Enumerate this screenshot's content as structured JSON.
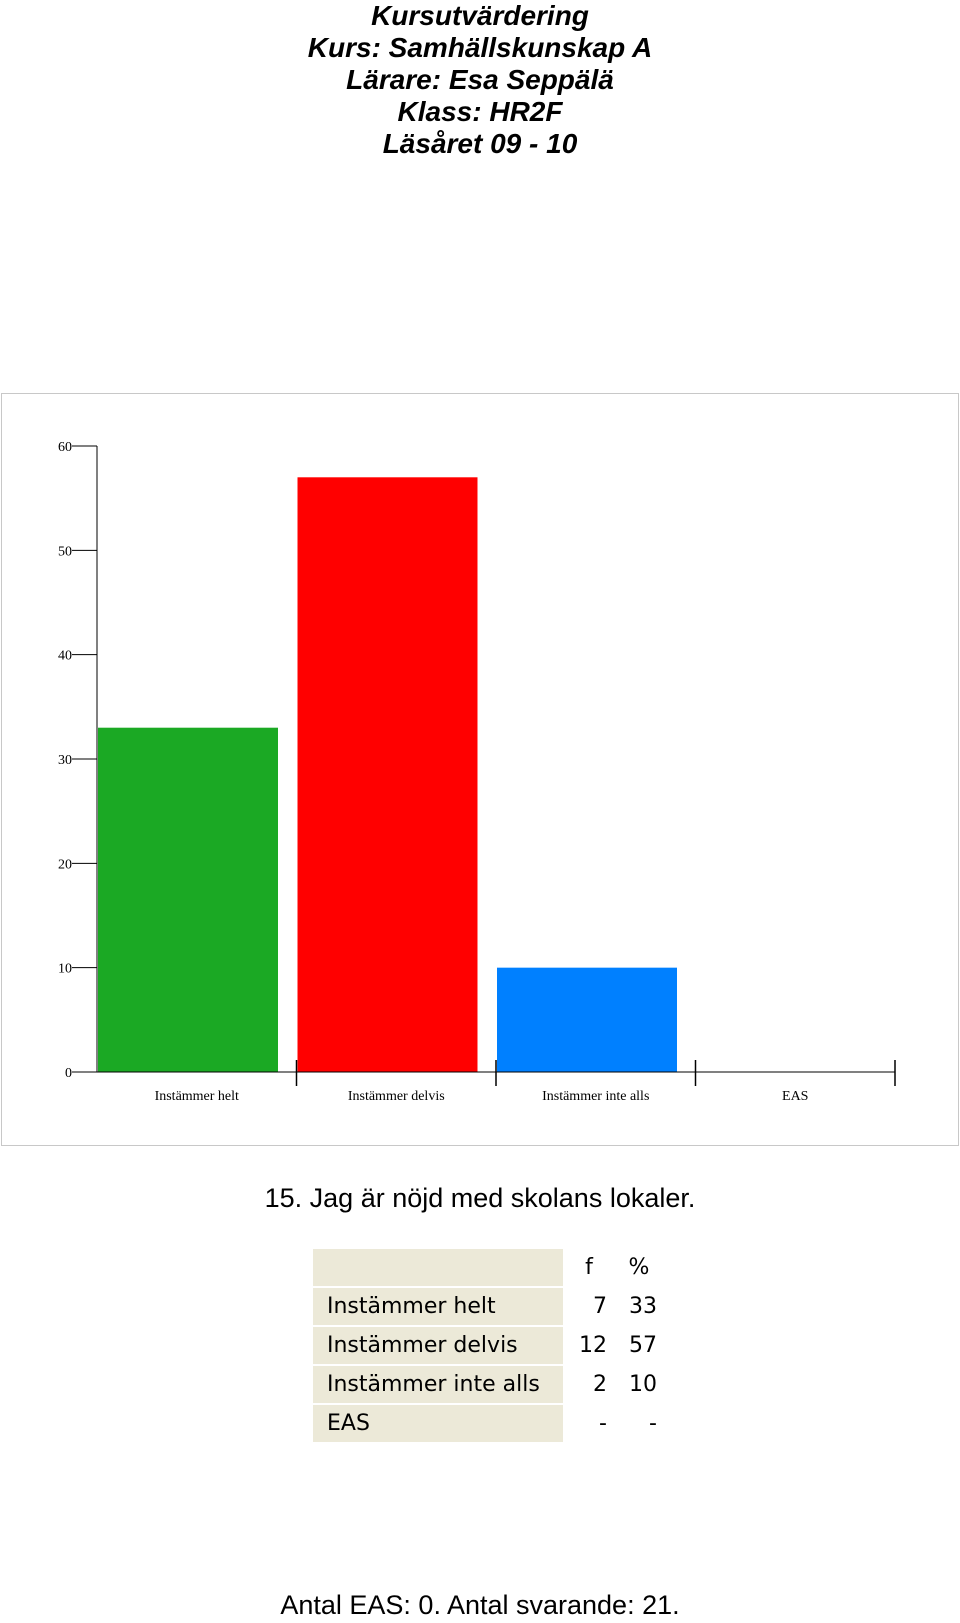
{
  "header": {
    "line1": "Kursutvärdering",
    "line2": "Kurs: Samhällskunskap A",
    "line3": "Lärare: Esa Seppälä",
    "line4": "Klass: HR2F",
    "line5": "Läsåret 09 - 10"
  },
  "chart_data": {
    "type": "bar",
    "categories": [
      "Instämmer helt",
      "Instämmer delvis",
      "Instämmer inte alls",
      "EAS"
    ],
    "values": [
      33,
      57,
      10,
      0
    ],
    "colors": [
      "#1ba924",
      "#ff0000",
      "#0080ff",
      "#ffffff"
    ],
    "ylim": [
      0,
      60
    ],
    "yticks": [
      0,
      10,
      20,
      30,
      40,
      50,
      60
    ],
    "grid": false,
    "legend": false
  },
  "question": "15. Jag är nöjd med skolans lokaler.",
  "table": {
    "headers": [
      "f",
      "%"
    ],
    "rows": [
      {
        "label": "Instämmer helt",
        "f": "7",
        "pct": "33"
      },
      {
        "label": "Instämmer delvis",
        "f": "12",
        "pct": "57"
      },
      {
        "label": "Instämmer inte alls",
        "f": "2",
        "pct": "10"
      },
      {
        "label": "EAS",
        "f": "-",
        "pct": "-"
      }
    ]
  },
  "footer": "Antal EAS: 0. Antal svarande:  21."
}
